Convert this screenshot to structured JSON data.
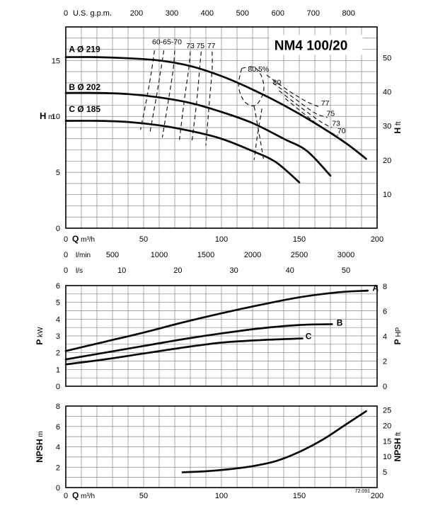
{
  "page": {
    "bg": "#ffffff",
    "ink": "#000000",
    "grid_color": "#858585",
    "curve_color": "#0a0a0a",
    "dash_color": "#1a1a1a"
  },
  "sheet_code": "72.091",
  "pump_model": "NM4 100/20",
  "chart_data": [
    {
      "id": "head",
      "type": "line",
      "title": "NM4 100/20",
      "x": {
        "min": 0,
        "max": 200,
        "grid_step": 10
      },
      "y": {
        "min": 0,
        "max": 18,
        "grid_step": 1
      },
      "left_axis": {
        "name": "H",
        "unit": "m",
        "ticks": [
          0,
          5,
          10,
          15
        ]
      },
      "right_axis": {
        "name": "H",
        "unit": "ft",
        "ticks": [
          10,
          20,
          30,
          40,
          50
        ],
        "m_per_unit": 0.3048
      },
      "top_axis": {
        "unit": "U.S. g.p.m.",
        "ticks": [
          0,
          200,
          300,
          400,
          500,
          600,
          700,
          800
        ],
        "m3h_per_unit": 0.22712
      },
      "bottom_axes": [
        {
          "name": "Q",
          "unit": "m³/h",
          "ticks": [
            0,
            50,
            100,
            150,
            200
          ],
          "m3h_per_unit": 1
        },
        {
          "name": "",
          "unit": "l/min",
          "ticks": [
            0,
            500,
            1000,
            1500,
            2000,
            2500,
            3000
          ],
          "m3h_per_unit": 0.06
        },
        {
          "name": "",
          "unit": "l/s",
          "ticks": [
            0,
            10,
            20,
            30,
            40,
            50
          ],
          "m3h_per_unit": 3.6
        }
      ],
      "series": [
        {
          "name": "A",
          "impeller": "Ø 219",
          "points": [
            [
              0,
              15.3
            ],
            [
              20,
              15.3
            ],
            [
              40,
              15.2
            ],
            [
              60,
              15.0
            ],
            [
              80,
              14.5
            ],
            [
              100,
              13.6
            ],
            [
              120,
              12.4
            ],
            [
              140,
              11.0
            ],
            [
              160,
              9.4
            ],
            [
              180,
              7.6
            ],
            [
              193,
              6.2
            ]
          ]
        },
        {
          "name": "B",
          "impeller": "Ø 202",
          "points": [
            [
              0,
              12.1
            ],
            [
              20,
              12.1
            ],
            [
              40,
              12.0
            ],
            [
              60,
              11.7
            ],
            [
              80,
              11.2
            ],
            [
              100,
              10.4
            ],
            [
              120,
              9.4
            ],
            [
              140,
              8.0
            ],
            [
              155,
              6.9
            ],
            [
              170,
              4.7
            ]
          ]
        },
        {
          "name": "C",
          "impeller": "Ø 185",
          "points": [
            [
              0,
              9.6
            ],
            [
              20,
              9.6
            ],
            [
              40,
              9.5
            ],
            [
              60,
              9.2
            ],
            [
              80,
              8.7
            ],
            [
              100,
              8.0
            ],
            [
              120,
              6.9
            ],
            [
              135,
              5.9
            ],
            [
              150,
              4.1
            ]
          ]
        }
      ],
      "efficiency_curves": [
        {
          "label": "60",
          "points": [
            [
              57,
              15.9
            ],
            [
              55,
              14.0
            ],
            [
              52,
              11.6
            ],
            [
              48,
              8.8
            ]
          ]
        },
        {
          "label": "65",
          "points": [
            [
              63,
              15.9
            ],
            [
              61,
              14.1
            ],
            [
              58,
              11.6
            ],
            [
              54,
              8.5
            ]
          ]
        },
        {
          "label": "70",
          "points": [
            [
              70,
              15.9
            ],
            [
              69,
              14.2
            ],
            [
              66,
              11.5
            ],
            [
              62,
              8.1
            ]
          ]
        },
        {
          "label": "73",
          "points": [
            [
              80,
              15.8
            ],
            [
              79,
              14.3
            ],
            [
              76,
              11.3
            ],
            [
              73,
              7.9
            ]
          ]
        },
        {
          "label": "75",
          "points": [
            [
              87,
              15.8
            ],
            [
              86,
              14.3
            ],
            [
              84,
              11.2
            ],
            [
              81,
              7.7
            ]
          ]
        },
        {
          "label": "77",
          "points": [
            [
              94,
              15.8
            ],
            [
              94,
              14.2
            ],
            [
              92,
              10.9
            ],
            [
              90,
              7.4
            ]
          ]
        },
        {
          "label": "80-loop",
          "points": [
            [
              113,
              14.3
            ],
            [
              121,
              14.4
            ],
            [
              126,
              13.5
            ],
            [
              127,
              12.2
            ],
            [
              122,
              11.0
            ],
            [
              115,
              11.3
            ],
            [
              111,
              12.7
            ],
            [
              113,
              14.3
            ]
          ]
        },
        {
          "label": "80-tail",
          "points": [
            [
              121,
              10.9
            ],
            [
              124,
              8.6
            ],
            [
              127,
              6.2
            ]
          ]
        },
        {
          "label": "77-tail",
          "points": [
            [
              126,
              10.7
            ],
            [
              123,
              8.2
            ],
            [
              121,
              6.1
            ]
          ]
        },
        {
          "label": "77-right",
          "points": [
            [
              129,
              13.7
            ],
            [
              142,
              12.4
            ],
            [
              155,
              11.3
            ],
            [
              164,
              10.8
            ]
          ]
        },
        {
          "label": "75-right",
          "points": [
            [
              133,
              13.0
            ],
            [
              147,
              11.6
            ],
            [
              160,
              10.3
            ],
            [
              168,
              9.9
            ]
          ]
        },
        {
          "label": "73-right",
          "points": [
            [
              137,
              12.3
            ],
            [
              151,
              10.8
            ],
            [
              164,
              9.5
            ],
            [
              171,
              9.0
            ]
          ]
        },
        {
          "label": "70-right",
          "points": [
            [
              141,
              11.6
            ],
            [
              156,
              9.9
            ],
            [
              168,
              8.7
            ],
            [
              175,
              8.3
            ]
          ]
        }
      ],
      "annotations": [
        {
          "text": "A Ø 219",
          "q": 2,
          "h": 15.75,
          "bold": true,
          "size": 12,
          "anchor": "start"
        },
        {
          "text": "B Ø 202",
          "q": 2,
          "h": 12.35,
          "bold": true,
          "size": 12,
          "anchor": "start"
        },
        {
          "text": "C Ø 185",
          "q": 2,
          "h": 10.4,
          "bold": true,
          "size": 12,
          "anchor": "start"
        },
        {
          "text": "NM4 100/20",
          "q": 134,
          "h": 15.95,
          "bold": true,
          "size": 19,
          "anchor": "start",
          "box": true
        },
        {
          "text": "60-65-70",
          "q": 65,
          "h": 16.45,
          "size": 10.5,
          "anchor": "middle"
        },
        {
          "text": "73",
          "q": 80,
          "h": 16.1,
          "size": 10.5,
          "anchor": "middle"
        },
        {
          "text": "75",
          "q": 86.5,
          "h": 16.1,
          "size": 10.5,
          "anchor": "middle"
        },
        {
          "text": "77",
          "q": 93.5,
          "h": 16.1,
          "size": 10.5,
          "anchor": "middle"
        },
        {
          "text": "80.5%",
          "q": 117,
          "h": 14.0,
          "size": 10.5,
          "anchor": "start"
        },
        {
          "text": "80",
          "q": 133,
          "h": 12.85,
          "size": 10.5,
          "anchor": "start"
        },
        {
          "text": "77",
          "q": 164,
          "h": 10.95,
          "size": 10.5,
          "anchor": "start"
        },
        {
          "text": "75",
          "q": 167.5,
          "h": 10.05,
          "size": 10.5,
          "anchor": "start"
        },
        {
          "text": "73",
          "q": 171,
          "h": 9.15,
          "size": 10.5,
          "anchor": "start"
        },
        {
          "text": "70",
          "q": 174.5,
          "h": 8.5,
          "size": 10.5,
          "anchor": "start"
        }
      ]
    },
    {
      "id": "power",
      "type": "line",
      "x": {
        "min": 0,
        "max": 200,
        "grid_step": 10
      },
      "y": {
        "min": 0,
        "max": 6,
        "grid_step": 0.5
      },
      "left_axis": {
        "name": "P",
        "unit": "kW",
        "ticks": [
          0,
          1,
          2,
          3,
          4,
          5,
          6
        ]
      },
      "right_axis": {
        "name": "P",
        "unit": "HP",
        "ticks": [
          0,
          2,
          4,
          6,
          8
        ],
        "m_per_unit": 0.7457
      },
      "series": [
        {
          "name": "A",
          "points": [
            [
              0,
              2.1
            ],
            [
              25,
              2.65
            ],
            [
              50,
              3.2
            ],
            [
              75,
              3.8
            ],
            [
              100,
              4.35
            ],
            [
              125,
              4.85
            ],
            [
              150,
              5.3
            ],
            [
              175,
              5.6
            ],
            [
              194,
              5.7
            ]
          ]
        },
        {
          "name": "B",
          "points": [
            [
              0,
              1.6
            ],
            [
              25,
              2.0
            ],
            [
              50,
              2.4
            ],
            [
              75,
              2.8
            ],
            [
              100,
              3.15
            ],
            [
              125,
              3.45
            ],
            [
              150,
              3.65
            ],
            [
              171,
              3.7
            ]
          ]
        },
        {
          "name": "C",
          "points": [
            [
              0,
              1.3
            ],
            [
              25,
              1.6
            ],
            [
              50,
              1.95
            ],
            [
              75,
              2.3
            ],
            [
              100,
              2.6
            ],
            [
              125,
              2.75
            ],
            [
              152,
              2.85
            ]
          ]
        }
      ],
      "annotations": [
        {
          "text": "A",
          "q": 197,
          "h": 5.68,
          "bold": true,
          "size": 12,
          "anchor": "start"
        },
        {
          "text": "B",
          "q": 174,
          "h": 3.62,
          "bold": true,
          "size": 12,
          "anchor": "start"
        },
        {
          "text": "C",
          "q": 154,
          "h": 2.8,
          "bold": true,
          "size": 12,
          "anchor": "start"
        }
      ]
    },
    {
      "id": "npsh",
      "type": "line",
      "x": {
        "min": 0,
        "max": 200,
        "grid_step": 10
      },
      "y": {
        "min": 0,
        "max": 8,
        "grid_step": 1
      },
      "left_axis": {
        "name": "NPSH",
        "unit": "m",
        "ticks": [
          0,
          2,
          4,
          6,
          8
        ]
      },
      "right_axis": {
        "name": "NPSH",
        "unit": "ft",
        "ticks": [
          5,
          10,
          15,
          20,
          25
        ],
        "m_per_unit": 0.3048
      },
      "bottom_axes": [
        {
          "name": "Q",
          "unit": "m³/h",
          "ticks": [
            0,
            50,
            100,
            150,
            200
          ],
          "m3h_per_unit": 1
        }
      ],
      "series": [
        {
          "name": "NPSH",
          "points": [
            [
              75,
              1.5
            ],
            [
              90,
              1.6
            ],
            [
              105,
              1.8
            ],
            [
              120,
              2.1
            ],
            [
              135,
              2.6
            ],
            [
              150,
              3.5
            ],
            [
              165,
              4.7
            ],
            [
              180,
              6.2
            ],
            [
              193,
              7.5
            ]
          ]
        }
      ],
      "annotations": []
    }
  ]
}
